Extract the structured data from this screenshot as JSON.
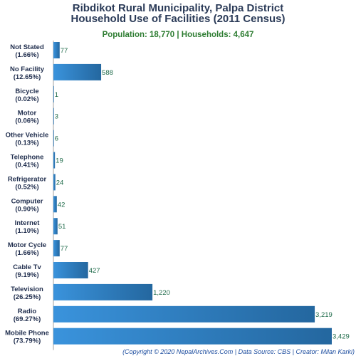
{
  "chart_data": {
    "type": "bar",
    "orientation": "horizontal",
    "title": "Ribdikot Rural Municipality, Palpa District",
    "subtitle_title": "Household Use of Facilities (2011 Census)",
    "summary": "Population: 18,770 | Households: 4,647",
    "categories": [
      {
        "name": "Not Stated",
        "pct": "(1.66%)"
      },
      {
        "name": "No Facility",
        "pct": "(12.65%)"
      },
      {
        "name": "Bicycle",
        "pct": "(0.02%)"
      },
      {
        "name": "Motor",
        "pct": "(0.06%)"
      },
      {
        "name": "Other Vehicle",
        "pct": "(0.13%)"
      },
      {
        "name": "Telephone",
        "pct": "(0.41%)"
      },
      {
        "name": "Refrigerator",
        "pct": "(0.52%)"
      },
      {
        "name": "Computer",
        "pct": "(0.90%)"
      },
      {
        "name": "Internet",
        "pct": "(1.10%)"
      },
      {
        "name": "Motor Cycle",
        "pct": "(1.66%)"
      },
      {
        "name": "Cable Tv",
        "pct": "(9.19%)"
      },
      {
        "name": "Television",
        "pct": "(26.25%)"
      },
      {
        "name": "Radio",
        "pct": "(69.27%)"
      },
      {
        "name": "Mobile Phone",
        "pct": "(73.79%)"
      }
    ],
    "values": [
      77,
      588,
      1,
      3,
      6,
      19,
      24,
      42,
      51,
      77,
      427,
      1220,
      3219,
      3429
    ],
    "value_labels": [
      "77",
      "588",
      "1",
      "3",
      "6",
      "19",
      "24",
      "42",
      "51",
      "77",
      "427",
      "1,220",
      "3,219",
      "3,429"
    ],
    "xlim": [
      0,
      3429
    ],
    "bar_color": "#2f7fc6",
    "bar_color_dark": "#2468a8"
  },
  "footer": "(Copyright © 2020 NepalArchives.Com | Data Source: CBS | Creator: Milan Karki)"
}
